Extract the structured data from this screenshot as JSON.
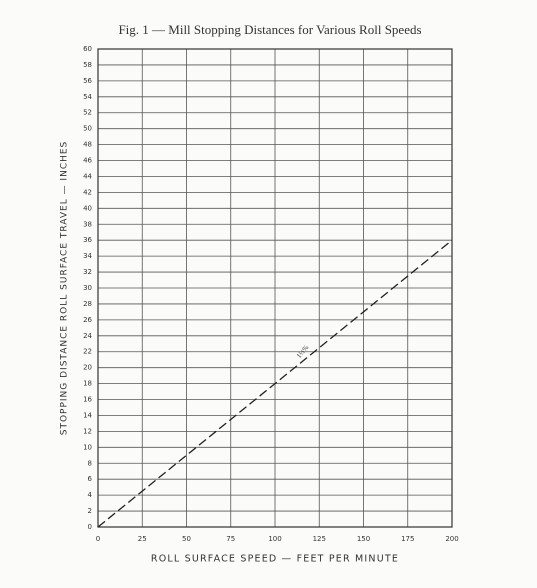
{
  "chart_data": {
    "type": "line",
    "title": "Fig. 1 — Mill Stopping Distances for Various Roll Speeds",
    "x_label": "ROLL SURFACE SPEED — FEET PER MINUTE",
    "y_label": "STOPPING DISTANCE ROLL SURFACE TRAVEL — INCHES",
    "annotation": "1½%",
    "x": [
      0,
      200
    ],
    "series": [
      {
        "values": [
          0,
          36
        ],
        "color": "#222222",
        "dashed": true
      }
    ],
    "xlim": [
      0,
      200
    ],
    "xticks": [
      0,
      25,
      50,
      75,
      100,
      125,
      150,
      175,
      200
    ],
    "ylim": [
      0,
      60
    ],
    "yticks": [
      0,
      2,
      4,
      6,
      8,
      10,
      12,
      14,
      16,
      18,
      20,
      22,
      24,
      26,
      28,
      30,
      32,
      34,
      36,
      38,
      40,
      42,
      44,
      46,
      48,
      50,
      52,
      54,
      56,
      58,
      60
    ],
    "grid": true
  }
}
